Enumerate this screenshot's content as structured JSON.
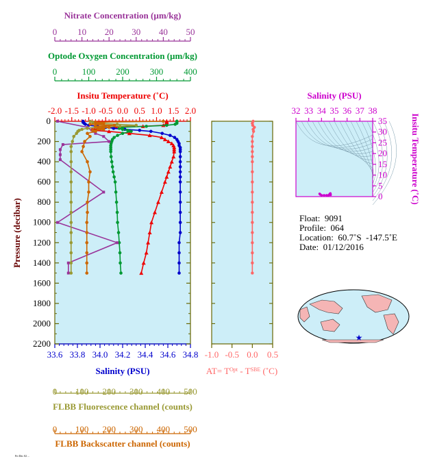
{
  "main_plot": {
    "ylabel": "Pressure (decibar)",
    "y_ticks": [
      0,
      200,
      400,
      600,
      800,
      1000,
      1200,
      1400,
      1600,
      1800,
      2000,
      2200
    ],
    "ylim": [
      2200,
      0
    ]
  },
  "axes": {
    "nitrate": {
      "label": "Nitrate Concentration (µm/kg)",
      "ticks": [
        "0",
        "10",
        "20",
        "30",
        "40",
        "50"
      ],
      "range": [
        0,
        50
      ],
      "color": "#993399"
    },
    "oxygen": {
      "label": "Optode Oxygen Concentration (µm/kg)",
      "ticks": [
        "0",
        "100",
        "200",
        "300",
        "400"
      ],
      "range": [
        0,
        400
      ],
      "color": "#009933"
    },
    "temperature": {
      "label": "Insitu Temperature (˚C)",
      "ticks": [
        "-2.0",
        "-1.5",
        "-1.0",
        "-0.5",
        "0.0",
        "0.5",
        "1.0",
        "1.5",
        "2.0"
      ],
      "range": [
        -2.0,
        2.0
      ],
      "color": "#ee0000"
    },
    "salinity": {
      "label": "Salinity (PSU)",
      "ticks": [
        "33.6",
        "33.8",
        "34.0",
        "34.2",
        "34.4",
        "34.6",
        "34.8"
      ],
      "range": [
        33.6,
        34.8
      ],
      "color": "#0000cc"
    },
    "fluorescence": {
      "label": "FLBB Fluorescence channel (counts)",
      "ticks": [
        "0",
        "100",
        "200",
        "300",
        "400",
        "500"
      ],
      "range": [
        0,
        500
      ],
      "color": "#999933"
    },
    "backscatter": {
      "label": "FLBB Backscatter channel (counts)",
      "ticks": [
        "0",
        "100",
        "200",
        "300",
        "400",
        "500"
      ],
      "range": [
        0,
        500
      ],
      "color": "#cc6600"
    }
  },
  "at_plot": {
    "xlabel": "AT= T",
    "xlabel_sup1": "Opt",
    "xlabel_mid": " - T",
    "xlabel_sup2": "SBE",
    "xlabel_end": " (˚C)",
    "ticks": [
      "-1.0",
      "-0.5",
      "0.0",
      "0.5"
    ],
    "range": [
      -1.0,
      0.5
    ],
    "color": "#ff6666"
  },
  "ts_plot": {
    "title": "Salinity (PSU)",
    "x_ticks": [
      "32",
      "33",
      "34",
      "35",
      "36",
      "37",
      "38"
    ],
    "xrange": [
      32,
      38
    ],
    "ylabel": "Insitu Temperature (˚C)",
    "y_ticks": [
      "0",
      "5",
      "10",
      "15",
      "20",
      "25",
      "30",
      "35"
    ],
    "yrange": [
      0,
      35
    ],
    "color": "#cc00cc"
  },
  "info": {
    "float": "Float:  9091",
    "profile": "Profile:  064",
    "location": "Location:  60.7˚S  -147.5˚E",
    "date": "Date:  01/12/2016"
  },
  "footer_text": "Fri Dec 02 ...",
  "colors": {
    "plot_bg": "#cdeef8",
    "frame": "#666600"
  },
  "chart_data": [
    {
      "type": "line",
      "name": "profile",
      "ylabel": "Pressure (decibar)",
      "series": [
        {
          "name": "Insitu Temperature",
          "axis": "temperature",
          "color": "#ee0000",
          "marker": "triangle",
          "p": [
            0,
            10,
            20,
            30,
            40,
            50,
            60,
            70,
            80,
            90,
            100,
            120,
            140,
            160,
            180,
            200,
            220,
            240,
            260,
            280,
            300,
            350,
            400,
            450,
            500,
            550,
            600,
            700,
            800,
            900,
            1000,
            1100,
            1200,
            1300,
            1400,
            1500
          ],
          "v": [
            1.3,
            1.3,
            1.3,
            1.28,
            1.2,
            0.6,
            -0.2,
            -0.8,
            -0.9,
            -0.85,
            -0.4,
            0.2,
            0.8,
            1.15,
            1.25,
            1.35,
            1.45,
            1.5,
            1.52,
            1.52,
            1.52,
            1.5,
            1.45,
            1.4,
            1.35,
            1.3,
            1.25,
            1.15,
            1.05,
            0.95,
            0.85,
            0.8,
            0.75,
            0.7,
            0.62,
            0.55
          ]
        },
        {
          "name": "Salinity",
          "axis": "salinity",
          "color": "#0000cc",
          "marker": "circle",
          "p": [
            0,
            10,
            20,
            30,
            40,
            50,
            60,
            70,
            80,
            90,
            100,
            120,
            140,
            160,
            180,
            200,
            220,
            240,
            260,
            280,
            300,
            350,
            400,
            450,
            500,
            550,
            600,
            700,
            800,
            900,
            1000,
            1100,
            1200,
            1300,
            1400,
            1500
          ],
          "v": [
            33.85,
            33.85,
            33.86,
            33.87,
            33.9,
            33.98,
            34.05,
            34.12,
            34.22,
            34.35,
            34.45,
            34.55,
            34.62,
            34.66,
            34.68,
            34.69,
            34.7,
            34.7,
            34.71,
            34.71,
            34.71,
            34.71,
            34.71,
            34.71,
            34.71,
            34.71,
            34.71,
            34.71,
            34.71,
            34.71,
            34.71,
            34.71,
            34.7,
            34.7,
            34.7,
            34.7
          ]
        },
        {
          "name": "Optode Oxygen",
          "axis": "oxygen",
          "color": "#009933",
          "marker": "circle",
          "p": [
            0,
            10,
            20,
            30,
            40,
            50,
            60,
            70,
            80,
            90,
            100,
            120,
            140,
            160,
            180,
            200,
            220,
            240,
            260,
            280,
            300,
            350,
            400,
            450,
            500,
            550,
            600,
            700,
            800,
            900,
            1000,
            1100,
            1200,
            1300,
            1400,
            1500
          ],
          "v": [
            360,
            360,
            360,
            355,
            330,
            270,
            200,
            190,
            200,
            215,
            225,
            200,
            185,
            175,
            170,
            168,
            166,
            165,
            165,
            165,
            165,
            166,
            168,
            170,
            172,
            175,
            178,
            180,
            182,
            184,
            185,
            188,
            190,
            192,
            193,
            195
          ]
        },
        {
          "name": "Nitrate",
          "axis": "nitrate",
          "color": "#993399",
          "marker": "square",
          "p": [
            0,
            60,
            100,
            120,
            150,
            200,
            230,
            280,
            330,
            380,
            700,
            1000,
            1200,
            1400,
            1500
          ],
          "v": [
            1,
            12,
            14,
            15,
            18,
            20,
            3,
            2,
            2,
            2,
            18,
            1,
            23,
            5,
            5
          ]
        },
        {
          "name": "FLBB Fluorescence",
          "axis": "fluorescence",
          "color": "#999933",
          "marker": "circle",
          "p": [
            0,
            10,
            20,
            30,
            40,
            50,
            60,
            70,
            80,
            90,
            100,
            120,
            150,
            200,
            250,
            300,
            400,
            500,
            600,
            700,
            800,
            900,
            1000,
            1100,
            1200,
            1300,
            1400,
            1500
          ],
          "v": [
            130,
            140,
            170,
            230,
            300,
            240,
            150,
            120,
            100,
            90,
            85,
            80,
            70,
            65,
            60,
            60,
            60,
            60,
            60,
            60,
            60,
            60,
            60,
            60,
            60,
            60,
            60,
            60
          ]
        },
        {
          "name": "FLBB Backscatter",
          "axis": "backscatter",
          "color": "#cc6600",
          "marker": "circle",
          "p": [
            0,
            10,
            20,
            30,
            40,
            50,
            60,
            70,
            80,
            90,
            100,
            120,
            150,
            200,
            250,
            300,
            400,
            500,
            600,
            700,
            800,
            900,
            1000,
            1100,
            1200,
            1300,
            1400,
            1500
          ],
          "v": [
            400,
            150,
            180,
            130,
            220,
            150,
            200,
            160,
            180,
            140,
            150,
            120,
            130,
            110,
            105,
            100,
            120,
            130,
            125,
            125,
            120,
            120,
            118,
            118,
            118,
            118,
            118,
            118
          ]
        }
      ]
    },
    {
      "type": "scatter",
      "name": "AT",
      "xlabel": "AT= TOpt - TSBE (˚C)",
      "xlim": [
        -1.0,
        0.5
      ],
      "series": [
        {
          "name": "AT",
          "color": "#ff6666",
          "p": [
            0,
            20,
            40,
            60,
            80,
            100,
            150,
            200,
            250,
            300,
            350,
            400,
            500,
            600,
            700,
            800,
            900,
            1000,
            1100,
            1200,
            1300,
            1400,
            1500
          ],
          "v": [
            0.02,
            0.0,
            0.01,
            0.05,
            0.02,
            0.03,
            0.0,
            0.0,
            0.0,
            0.0,
            0.0,
            0.0,
            0.0,
            0.0,
            0.0,
            0.0,
            0.0,
            0.0,
            0.0,
            0.0,
            0.0,
            0.0,
            0.0
          ]
        }
      ]
    },
    {
      "type": "scatter",
      "name": "TS",
      "xlabel": "Salinity (PSU)",
      "ylabel": "Insitu Temperature (˚C)",
      "xlim": [
        32,
        38
      ],
      "ylim": [
        0,
        35
      ],
      "series": [
        {
          "name": "TS",
          "color": "#cc00cc",
          "x": [
            33.85,
            33.9,
            34.0,
            34.2,
            34.4,
            34.55,
            34.62,
            34.66,
            34.69,
            34.7,
            34.71
          ],
          "y": [
            1.3,
            1.0,
            0.5,
            0.0,
            -0.3,
            0.5,
            1.0,
            1.3,
            1.5,
            1.2,
            0.8
          ]
        }
      ]
    }
  ]
}
